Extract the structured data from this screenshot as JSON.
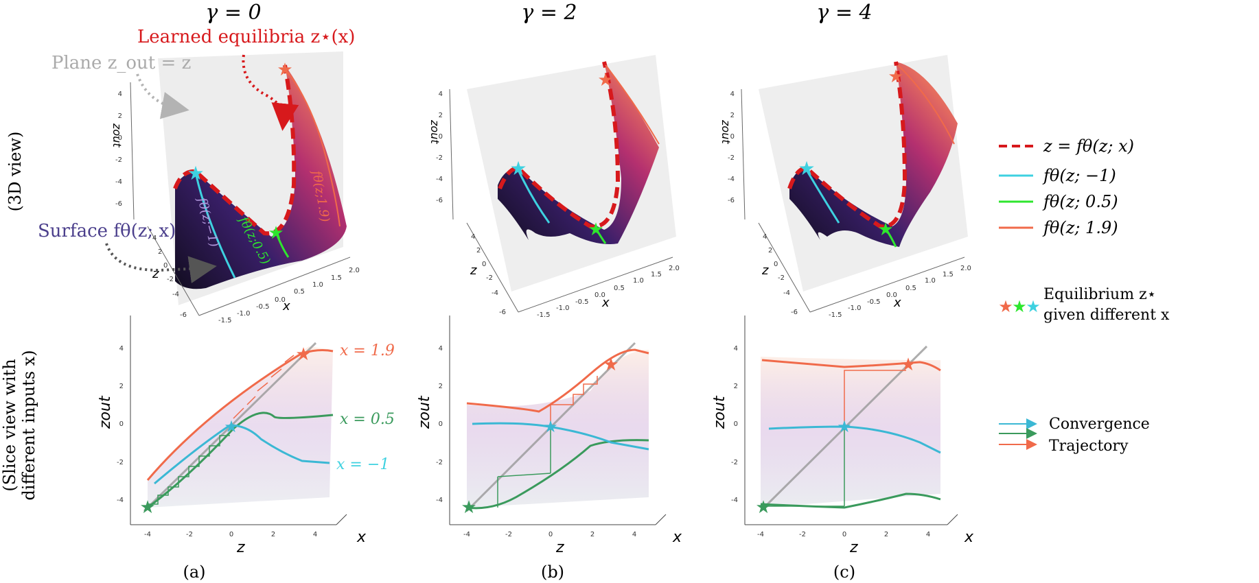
{
  "columns": [
    {
      "title": "γ = 0",
      "caption": "(a)"
    },
    {
      "title": "γ = 2",
      "caption": "(b)"
    },
    {
      "title": "γ = 4",
      "caption": "(c)"
    }
  ],
  "row_labels": {
    "top": "(3D view)",
    "bottom_line1": "(Slice view with",
    "bottom_line2": "different inputs x)"
  },
  "annotations": {
    "learned_equilibria": "Learned equilibria z⋆(x)",
    "plane": "Plane z_out = z",
    "surface": "Surface fθ(z; x)",
    "curve_m1": "fθ(z;−1)",
    "curve_05": "fθ(z;0.5)",
    "curve_19": "fθ(z;1.9)",
    "slice_x19": "x = 1.9",
    "slice_x05": "x = 0.5",
    "slice_xm1": "x = −1"
  },
  "legend_top": [
    {
      "label": "z = fθ(z; x)",
      "style": "dashed",
      "color": "#d7191c"
    },
    {
      "label": "fθ(z; −1)",
      "style": "solid",
      "color": "#3ed1e0"
    },
    {
      "label": "fθ(z; 0.5)",
      "style": "solid",
      "color": "#2ee62e"
    },
    {
      "label": "fθ(z; 1.9)",
      "style": "solid",
      "color": "#f06a4a"
    }
  ],
  "legend_equilibrium": {
    "line1": "Equilibrium z⋆",
    "line2": "given different x"
  },
  "legend_bottom": [
    {
      "label": "Convergence",
      "color": "#3bb8d4"
    },
    {
      "label": "Trajectory",
      "color": "#f06a4a"
    }
  ],
  "axes": {
    "zout": "zout",
    "z": "z",
    "x": "x",
    "z_ticks_3d": [
      "4",
      "2",
      "0",
      "-2",
      "-4",
      "-6"
    ],
    "z_depth_ticks": [
      "4",
      "2",
      "0",
      "-2",
      "-4",
      "-6"
    ],
    "x_ticks_3d": [
      "-1.5",
      "-1.0",
      "-0.5",
      "0.0",
      "0.5",
      "1.0",
      "1.5",
      "2.0"
    ],
    "slice_y_ticks": [
      "4",
      "2",
      "0",
      "-2",
      "-4"
    ],
    "slice_x_ticks": [
      "-4",
      "-2",
      "0",
      "2",
      "4"
    ]
  },
  "colors": {
    "equilibria_red": "#d7191c",
    "plane_gray": "#aaaaaa",
    "surface_purple": "#4b3f8c",
    "cyan": "#3ed1e0",
    "green": "#2ee62e",
    "orange": "#f06a4a",
    "slice_green": "#3a9a5c"
  }
}
